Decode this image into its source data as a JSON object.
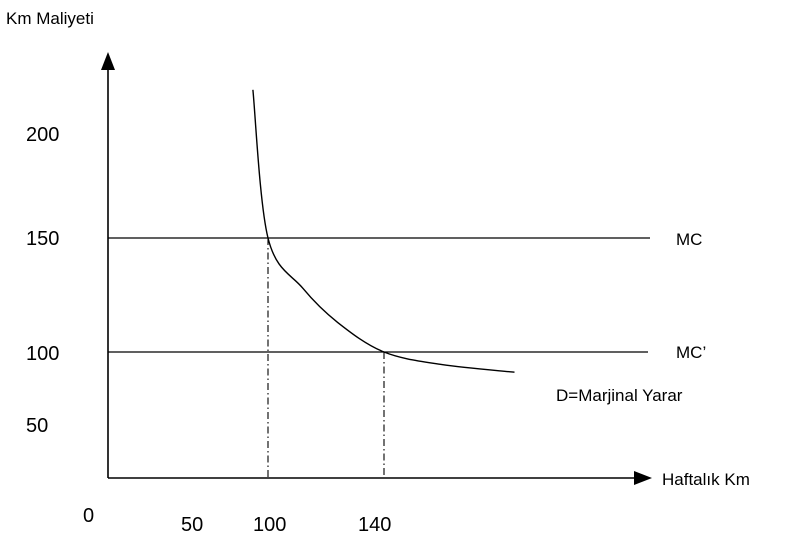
{
  "chart_data": {
    "type": "line",
    "xlabel": "Haftalık Km",
    "ylabel": "Km Maliyeti",
    "origin_label": "0",
    "x_ticks": [
      "50",
      "100",
      "140"
    ],
    "y_ticks": [
      "200",
      "150",
      "100",
      "50"
    ],
    "series": [
      {
        "name": "MC",
        "type": "horizontal",
        "y": 150
      },
      {
        "name": "MC’",
        "type": "horizontal",
        "y": 100
      },
      {
        "name": "D=Marjinal Yarar",
        "type": "curve",
        "points": [
          [
            88,
            215
          ],
          [
            100,
            150
          ],
          [
            112,
            128
          ],
          [
            124,
            113
          ],
          [
            140,
            100
          ],
          [
            160,
            90
          ],
          [
            185,
            84
          ]
        ]
      }
    ],
    "drop_lines": [
      {
        "x": 100,
        "y": 150
      },
      {
        "x": 140,
        "y": 100
      }
    ]
  }
}
